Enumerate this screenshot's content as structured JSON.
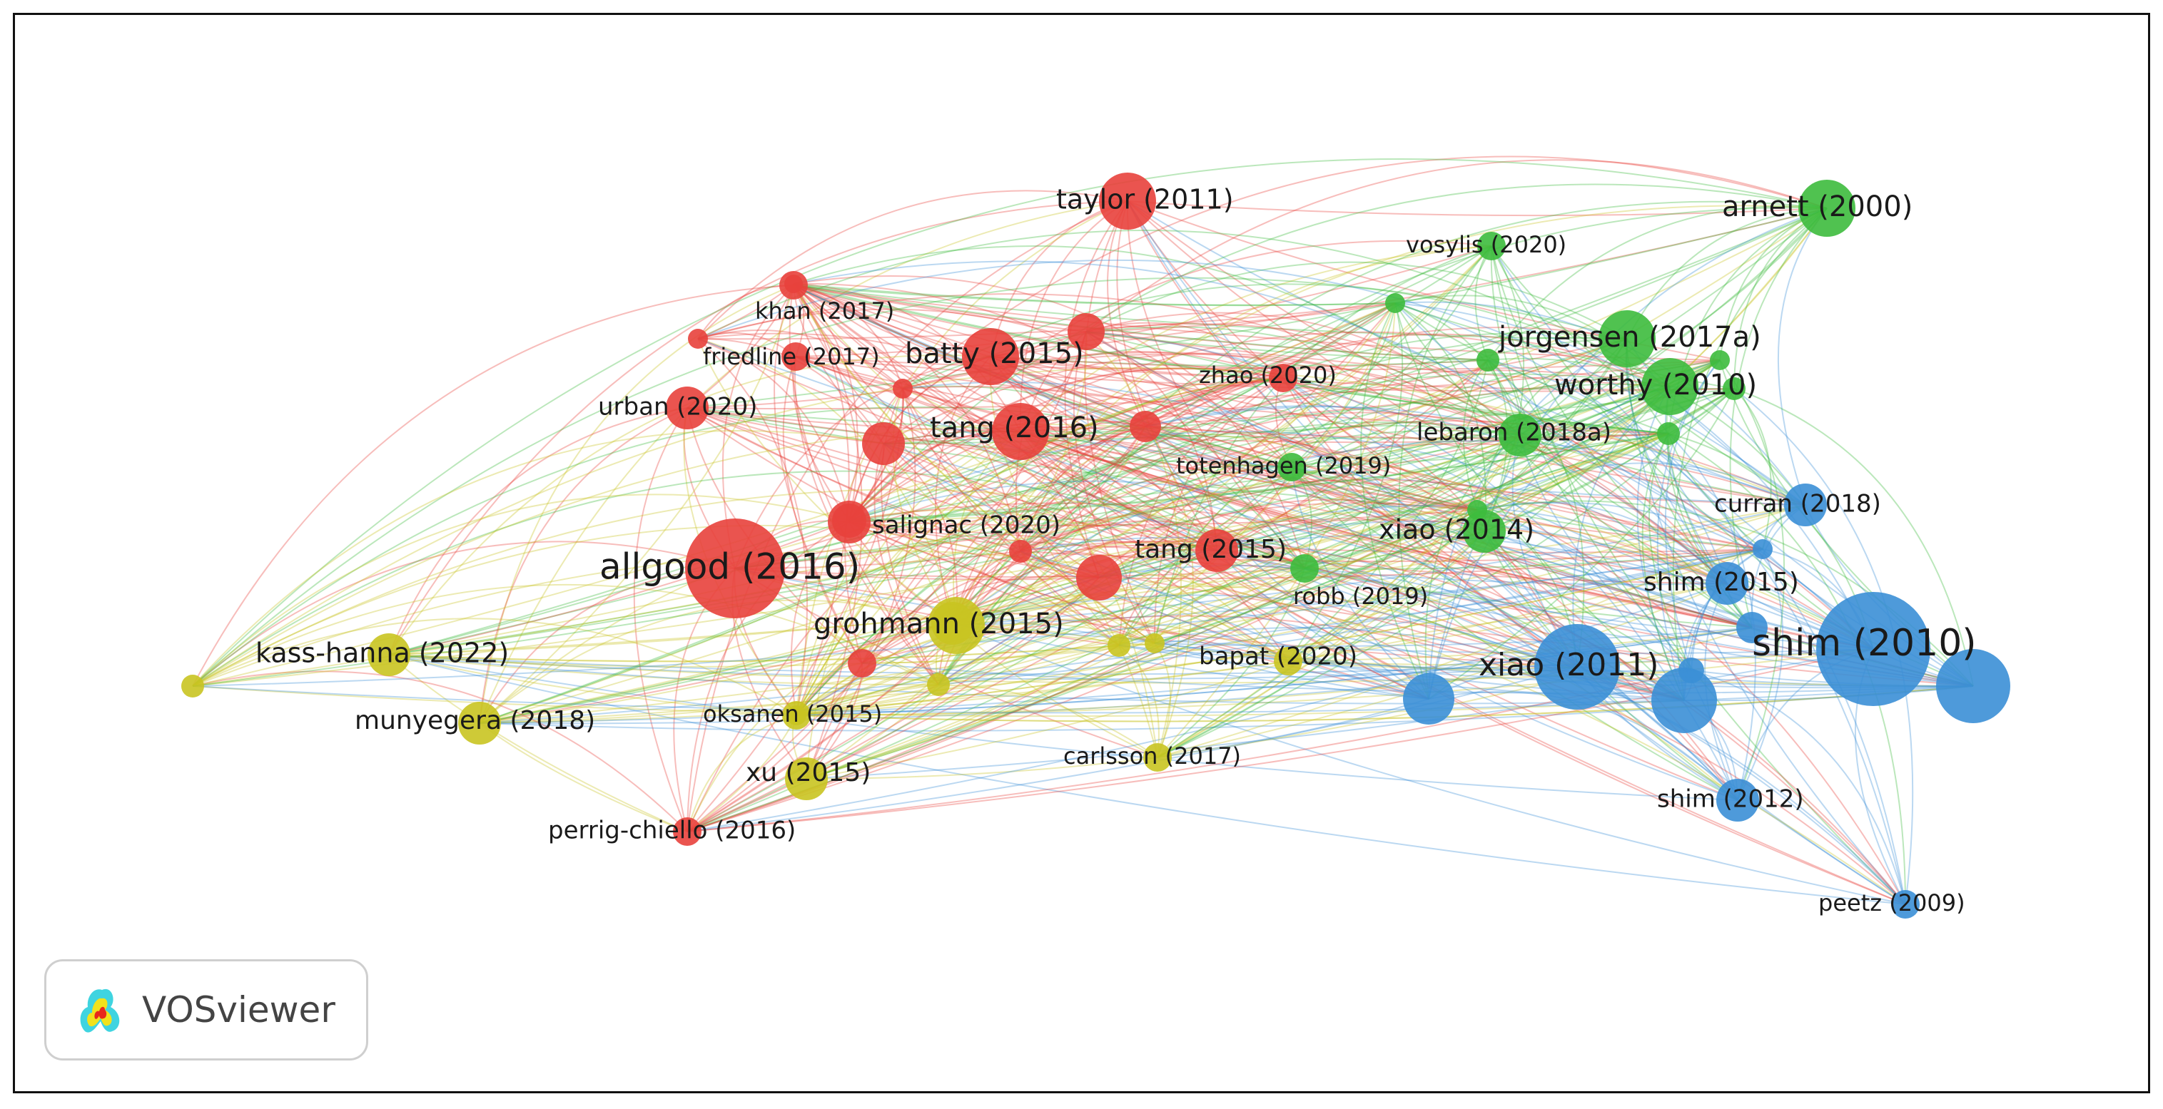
{
  "app": {
    "name": "VOSviewer"
  },
  "clusters": [
    {
      "id": "red",
      "color": "#e8413c"
    },
    {
      "id": "green",
      "color": "#3dbb3d"
    },
    {
      "id": "blue",
      "color": "#3b8fd6"
    },
    {
      "id": "yellow",
      "color": "#c9c421"
    }
  ],
  "nodes": [
    {
      "label": "taylor (2011)",
      "cluster": "red",
      "weight": 3
    },
    {
      "label": "khan (2017)",
      "cluster": "red",
      "weight": 1
    },
    {
      "label": "friedline (2017)",
      "cluster": "red",
      "weight": 1
    },
    {
      "label": "batty (2015)",
      "cluster": "red",
      "weight": 3
    },
    {
      "label": "zhao (2020)",
      "cluster": "red",
      "weight": 1
    },
    {
      "label": "urban (2020)",
      "cluster": "red",
      "weight": 2
    },
    {
      "label": "tang (2016)",
      "cluster": "red",
      "weight": 3
    },
    {
      "label": "salignac (2020)",
      "cluster": "red",
      "weight": 2
    },
    {
      "label": "allgood (2016)",
      "cluster": "red",
      "weight": 6
    },
    {
      "label": "tang (2015)",
      "cluster": "red",
      "weight": 2
    },
    {
      "label": "grohmann (2015)",
      "cluster": "yellow",
      "weight": 3
    },
    {
      "label": "kass-hanna (2022)",
      "cluster": "yellow",
      "weight": 2
    },
    {
      "label": "munyegera (2018)",
      "cluster": "yellow",
      "weight": 2
    },
    {
      "label": "oksanen (2015)",
      "cluster": "yellow",
      "weight": 1
    },
    {
      "label": "xu (2015)",
      "cluster": "yellow",
      "weight": 2
    },
    {
      "label": "perrig-chiello (2016)",
      "cluster": "red",
      "weight": 1
    },
    {
      "label": "carlsson (2017)",
      "cluster": "yellow",
      "weight": 1
    },
    {
      "label": "bapat (2020)",
      "cluster": "yellow",
      "weight": 1
    },
    {
      "label": "robb (2019)",
      "cluster": "green",
      "weight": 1
    },
    {
      "label": "totenhagen (2019)",
      "cluster": "green",
      "weight": 1
    },
    {
      "label": "xiao (2014)",
      "cluster": "green",
      "weight": 2
    },
    {
      "label": "lebaron (2018a)",
      "cluster": "green",
      "weight": 2
    },
    {
      "label": "vosylis (2020)",
      "cluster": "green",
      "weight": 1
    },
    {
      "label": "arnett (2000)",
      "cluster": "green",
      "weight": 3
    },
    {
      "label": "jorgensen (2017a)",
      "cluster": "green",
      "weight": 3
    },
    {
      "label": "worthy (2010)",
      "cluster": "green",
      "weight": 3
    },
    {
      "label": "curran (2018)",
      "cluster": "blue",
      "weight": 2
    },
    {
      "label": "shim (2015)",
      "cluster": "blue",
      "weight": 2
    },
    {
      "label": "shim (2010)",
      "cluster": "blue",
      "weight": 7
    },
    {
      "label": "xiao (2011)",
      "cluster": "blue",
      "weight": 5
    },
    {
      "label": "shim (2012)",
      "cluster": "blue",
      "weight": 2
    },
    {
      "label": "peetz (2009)",
      "cluster": "blue",
      "weight": 1
    }
  ]
}
